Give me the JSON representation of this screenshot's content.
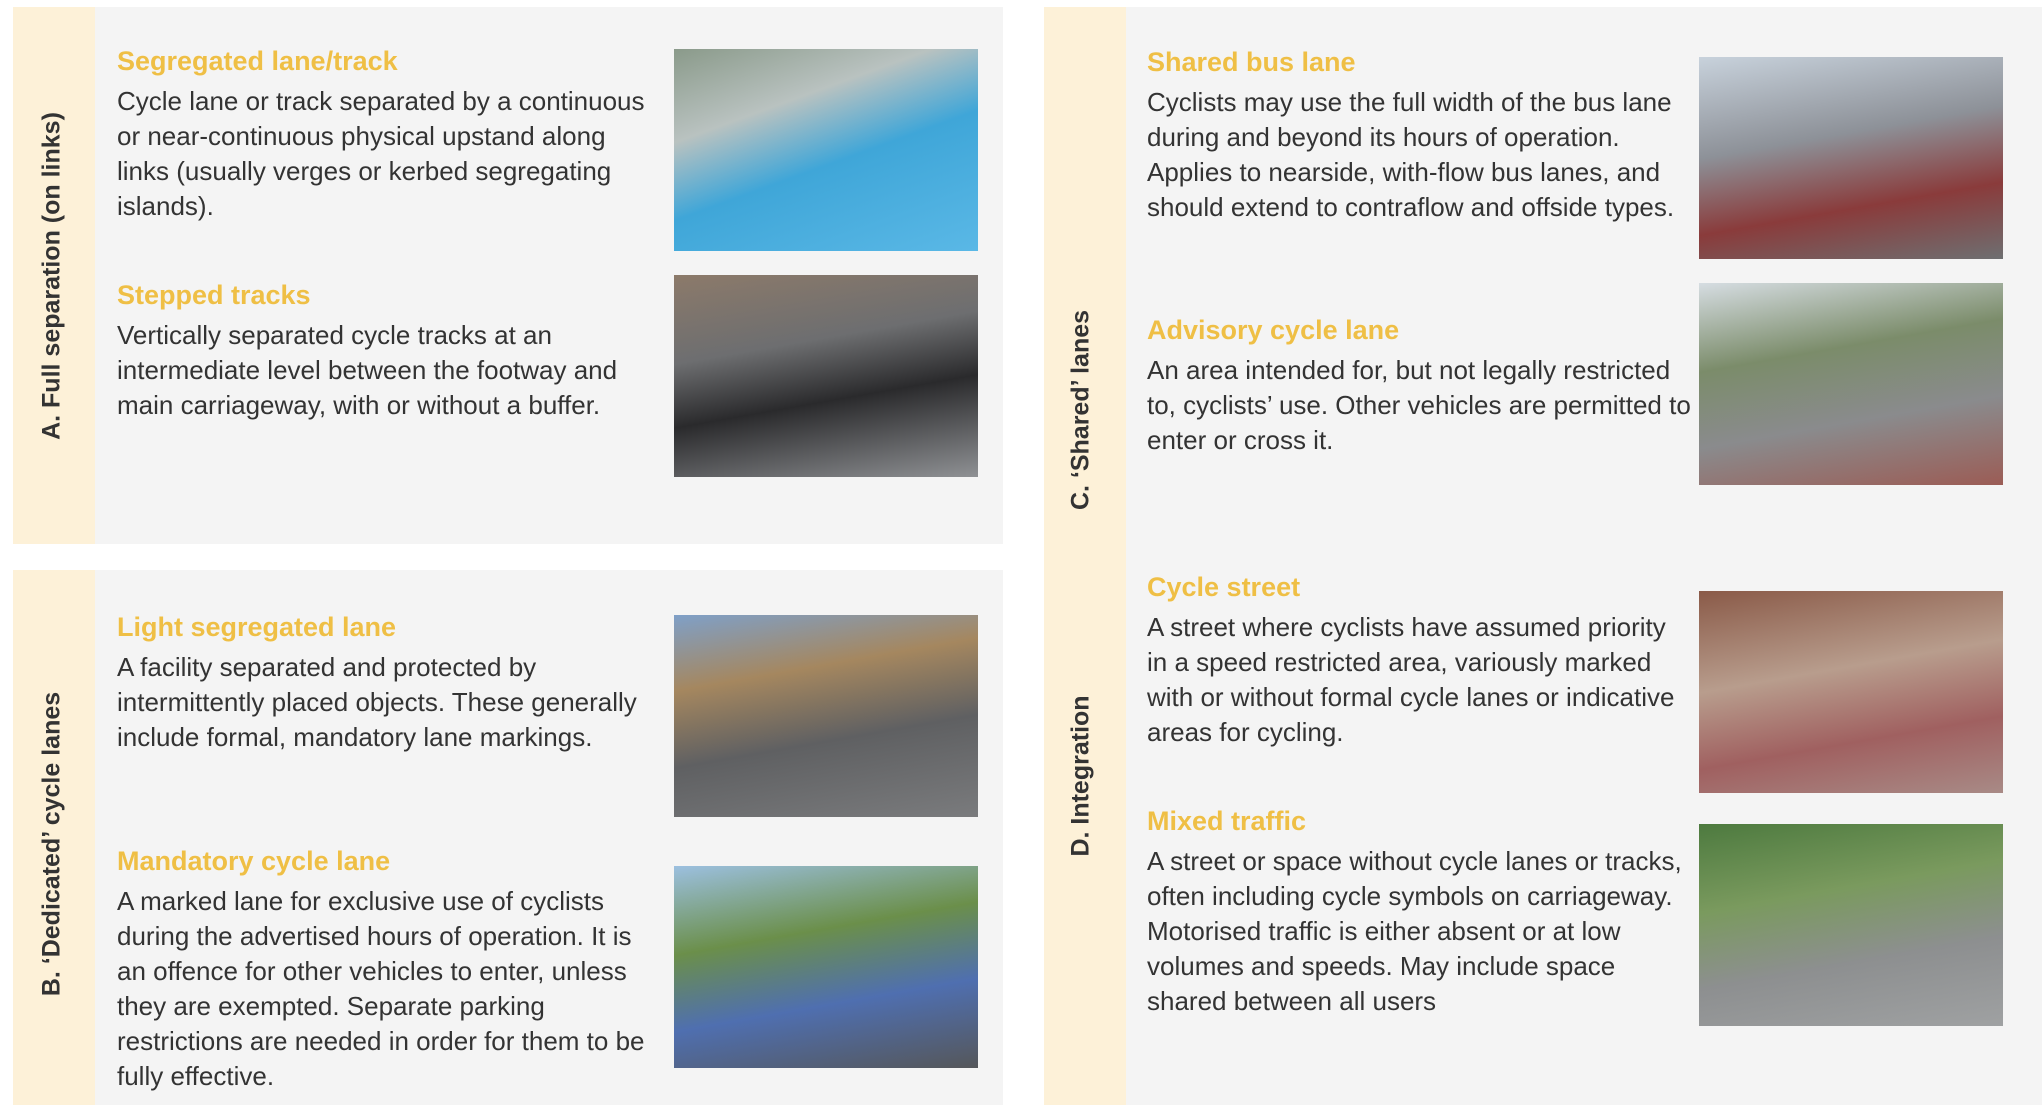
{
  "groups": [
    {
      "label": "A. Full separation (on links)",
      "items": [
        {
          "title": "Segregated lane/track",
          "description": "Cycle lane or track separated by a continuous or near-continuous physical upstand along links (usually verges or kerbed segregating islands)."
        },
        {
          "title": "Stepped tracks",
          "description": "Vertically separated cycle tracks at an intermediate level between the footway and main carriageway, with or without a buffer."
        }
      ]
    },
    {
      "label": "B. ‘Dedicated’ cycle lanes",
      "items": [
        {
          "title": "Light segregated lane",
          "description": "A facility separated and protected by intermittently placed objects. These generally include formal, mandatory lane markings."
        },
        {
          "title": "Mandatory cycle lane",
          "description": "A marked lane for exclusive use of cyclists during the advertised hours of operation. It is an offence for other vehicles to enter, unless they are exempted. Separate parking restrictions are needed in order for them to be fully effective."
        }
      ]
    },
    {
      "label": "C. ‘Shared’ lanes",
      "items": [
        {
          "title": "Shared bus lane",
          "description": "Cyclists may use the full width of the bus lane during and beyond its hours of operation. Applies to nearside, with-flow bus lanes, and should extend to contraflow and offside types."
        },
        {
          "title": "Advisory cycle lane",
          "description": "An area intended for, but not legally restricted to, cyclists’ use. Other vehicles are permitted to enter or cross it."
        }
      ]
    },
    {
      "label": "D. Integration",
      "items": [
        {
          "title": "Cycle street",
          "description": "A street where cyclists have assumed priority in a speed restricted area, variously marked with or without formal cycle lanes or indicative areas for cycling."
        },
        {
          "title": "Mixed traffic",
          "description": "A street or space without cycle lanes or tracks, often including cycle symbols on carriageway. Motorised traffic is either absent or at low volumes and speeds. May include space shared between all users"
        }
      ]
    }
  ]
}
